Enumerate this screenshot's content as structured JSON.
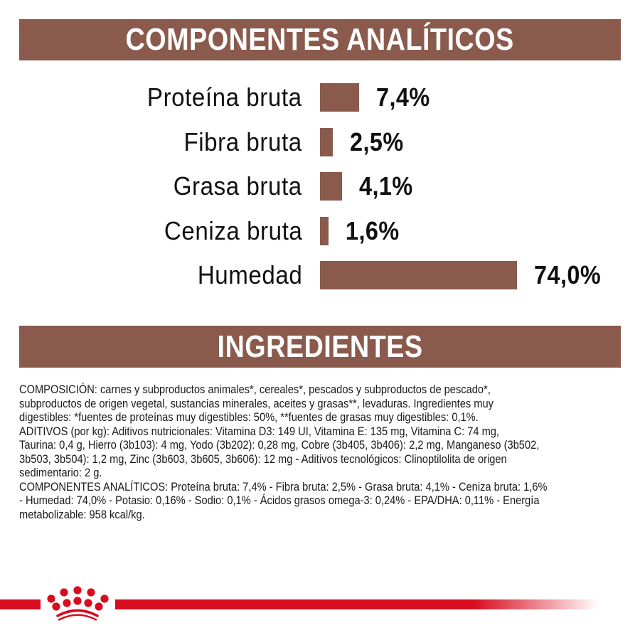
{
  "headers": {
    "analiticos": "COMPONENTES ANALÍTICOS",
    "ingredientes": "INGREDIENTES"
  },
  "colors": {
    "band": "#8a5a4d",
    "bar": "#8a5a4d",
    "brand_red": "#d90b1f",
    "text": "#111111"
  },
  "chart_data": {
    "type": "bar",
    "orientation": "horizontal",
    "title": "COMPONENTES ANALÍTICOS",
    "categories": [
      "Proteína bruta",
      "Fibra bruta",
      "Grasa bruta",
      "Ceniza bruta",
      "Humedad"
    ],
    "values": [
      7.4,
      2.5,
      4.1,
      1.6,
      74.0
    ],
    "value_labels": [
      "7,4%",
      "2,5%",
      "4,1%",
      "1,6%",
      "74,0%"
    ],
    "unit": "%",
    "xlabel": "",
    "ylabel": "",
    "grid": false,
    "legend": "none"
  },
  "ingredients": {
    "lines": [
      "COMPOSICIÓN: carnes y subproductos animales*, cereales*, pescados y subproductos de pescado*,",
      "subproductos de origen vegetal, sustancias minerales, aceites y grasas**, levaduras. Ingredientes muy",
      "digestibles: *fuentes de proteínas muy digestibles: 50%, **fuentes de grasas muy digestibles: 0,1%.",
      "ADITIVOS (por kg): Aditivos nutricionales: Vitamina D3: 149 UI, Vitamina E: 135 mg, Vitamina C: 74 mg,",
      "Taurina: 0,4 g, Hierro (3b103): 4 mg, Yodo (3b202): 0,28 mg, Cobre (3b405, 3b406): 2,2 mg, Manganeso (3b502,",
      "3b503, 3b504): 1,2 mg, Zinc (3b603, 3b605, 3b606): 12 mg - Aditivos tecnológicos: Clinoptilolita de origen",
      "sedimentario: 2 g.",
      "COMPONENTES ANALÍTICOS: Proteína bruta: 7,4% - Fibra bruta: 2,5% - Grasa bruta: 4,1% - Ceniza bruta: 1,6%",
      "- Humedad: 74,0% - Potasio: 0,16% - Sodio: 0,1% - Ácidos grasos omega-3: 0,24% - EPA/DHA: 0,11% - Energía",
      "metabolizable: 958 kcal/kg."
    ]
  },
  "footer": {
    "logo_icon": "royal-crown-icon"
  }
}
